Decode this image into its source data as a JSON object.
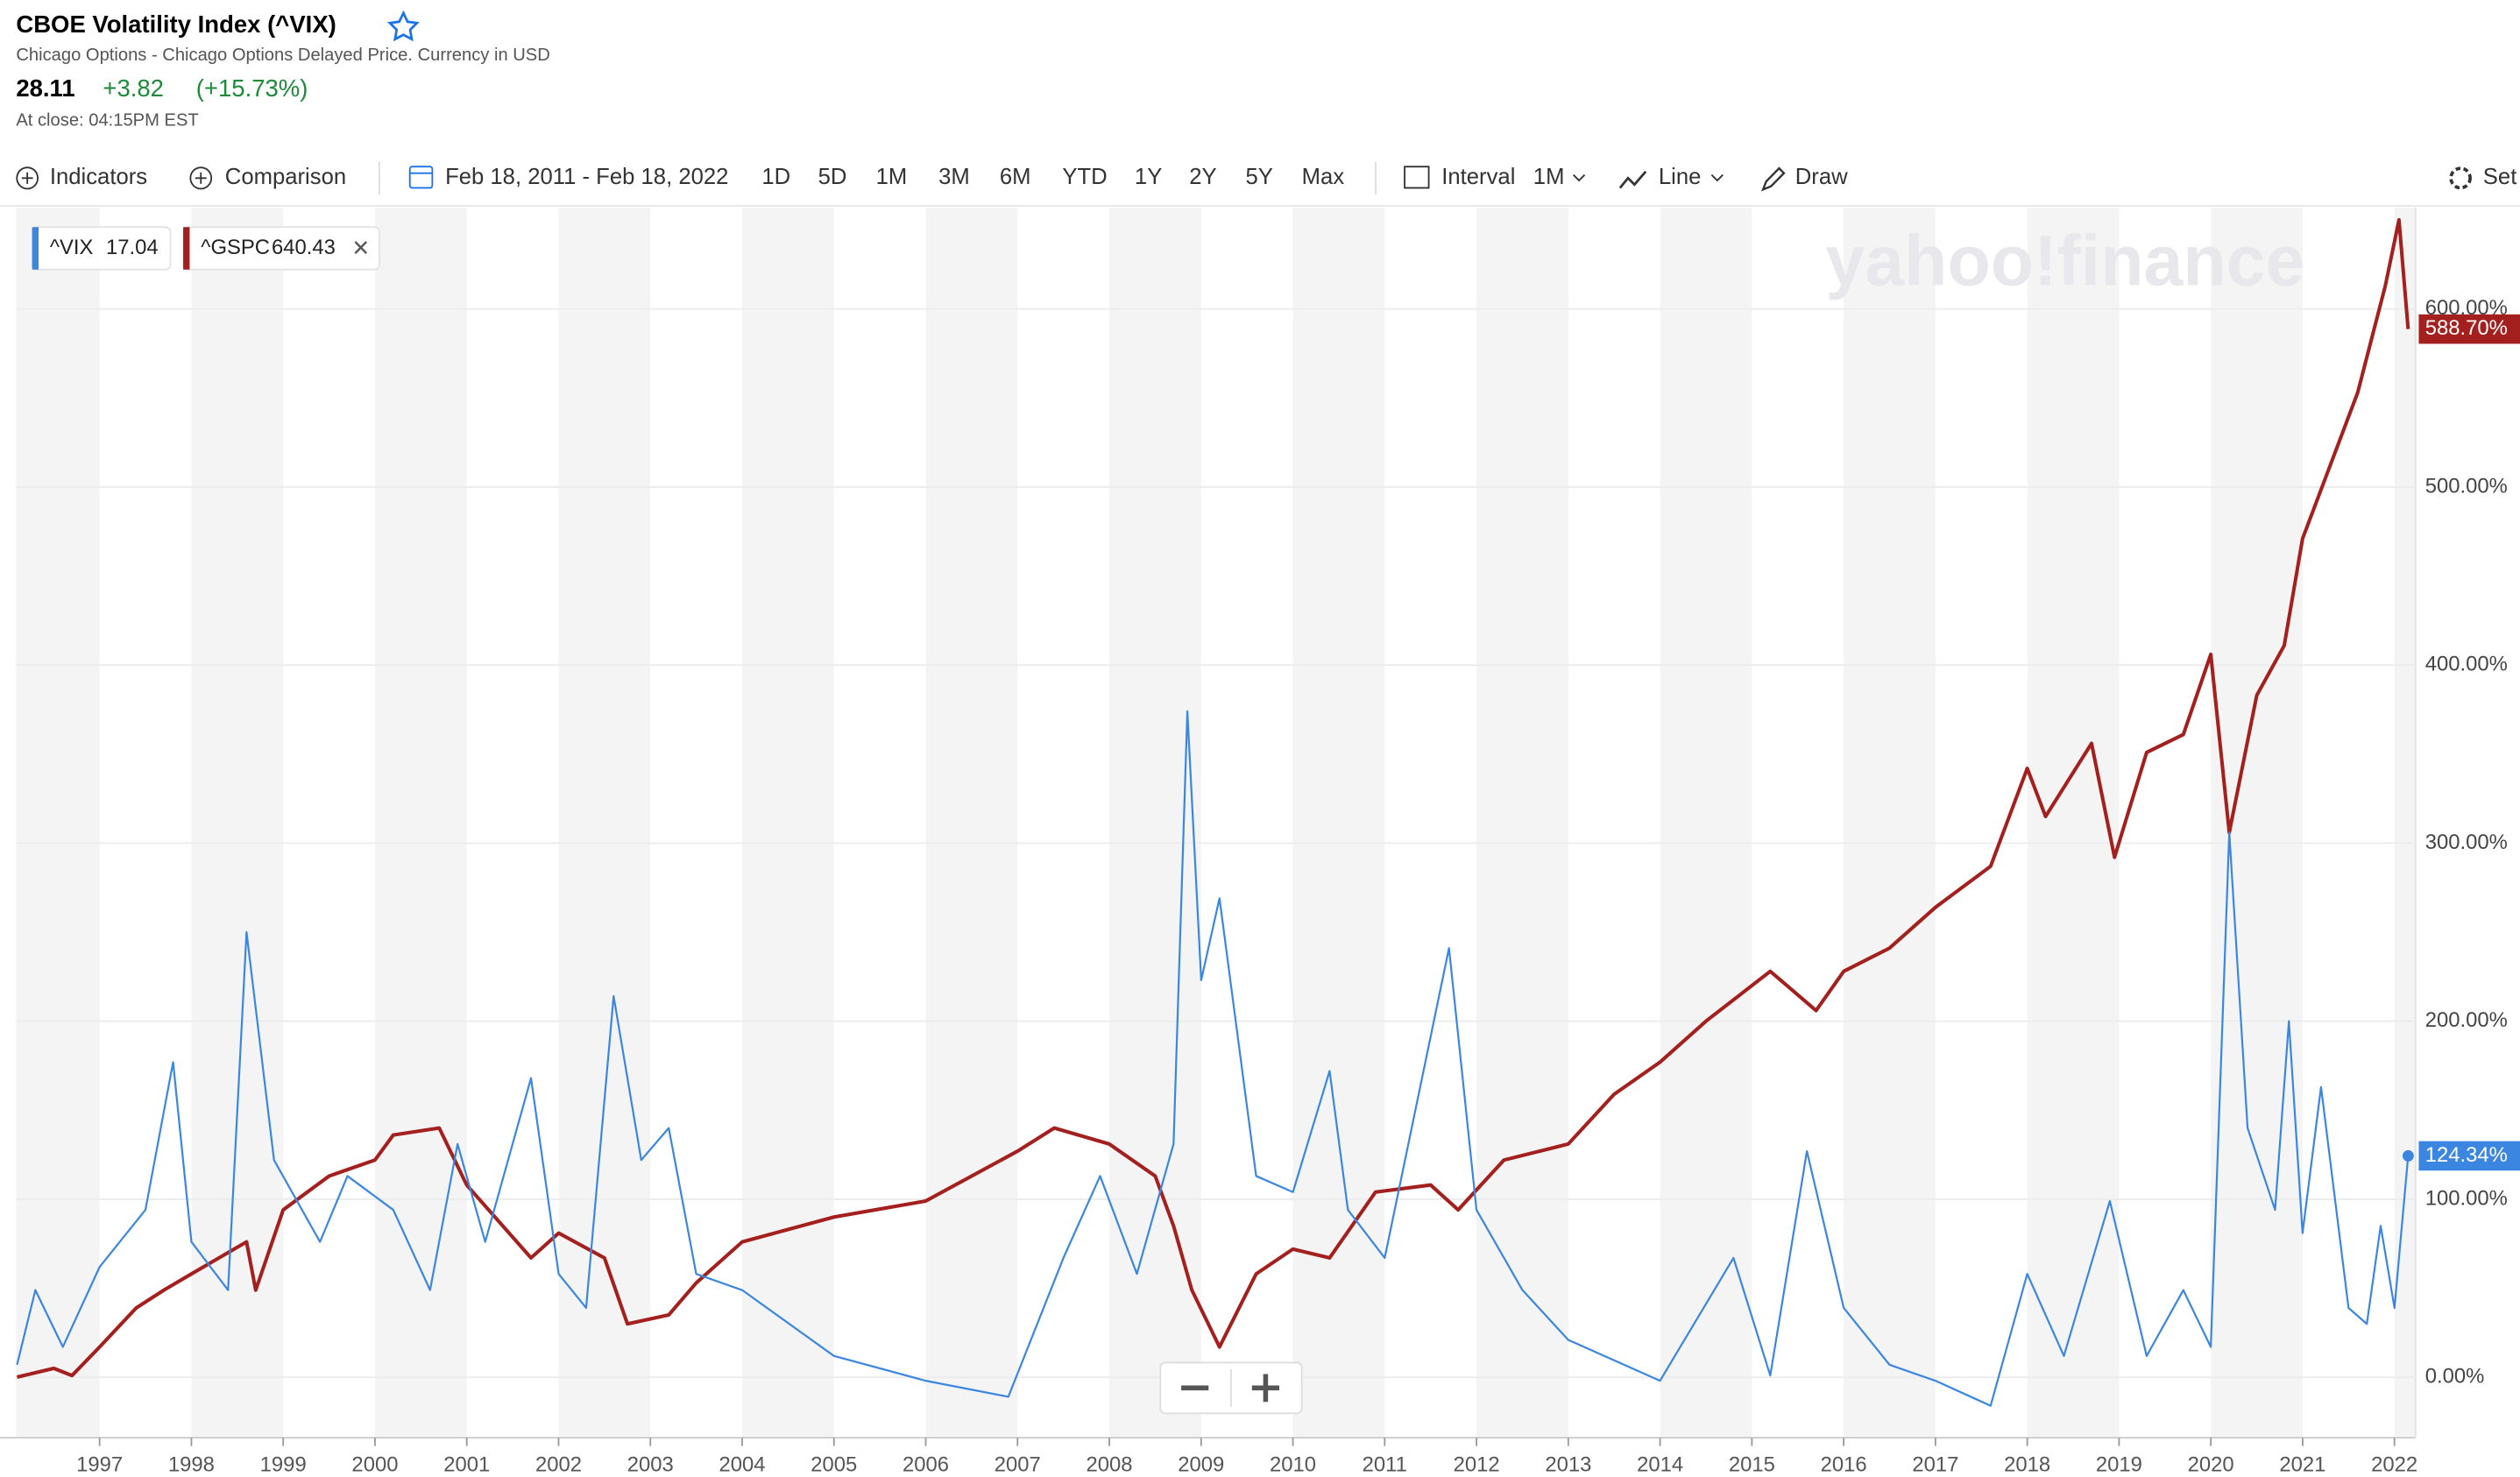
{
  "header": {
    "title": "CBOE Volatility Index (^VIX)",
    "subtitle": "Chicago Options - Chicago Options Delayed Price. Currency in USD",
    "price": "28.11",
    "change": "+3.82",
    "change_percent": "(+15.73%)",
    "close_time": "At close: 04:15PM EST"
  },
  "toolbar": {
    "indicators": "Indicators",
    "comparison": "Comparison",
    "date_range": "Feb 18, 2011 - Feb 18, 2022",
    "ranges": [
      "1D",
      "5D",
      "1M",
      "3M",
      "6M",
      "YTD",
      "1Y",
      "2Y",
      "5Y",
      "Max"
    ],
    "interval": "Interval",
    "interval_value": "1M",
    "chart_style": "Line",
    "draw": "Draw",
    "settings": "Set"
  },
  "chart_data": {
    "type": "line",
    "watermark": "yahoo!finance",
    "xlim": [
      1996.09,
      2022.23
    ],
    "xticks": [
      1997,
      1998,
      1999,
      2000,
      2001,
      2002,
      2003,
      2004,
      2005,
      2006,
      2007,
      2008,
      2009,
      2010,
      2011,
      2012,
      2013,
      2014,
      2015,
      2016,
      2017,
      2018,
      2019,
      2020,
      2021,
      2022
    ],
    "ylim": [
      -34,
      657
    ],
    "yticks": [
      {
        "value": 0,
        "label": "0.00%"
      },
      {
        "value": 100,
        "label": "100.00%"
      },
      {
        "value": 200,
        "label": "200.00%"
      },
      {
        "value": 300,
        "label": "300.00%"
      },
      {
        "value": 400,
        "label": "400.00%"
      },
      {
        "value": 500,
        "label": "500.00%"
      },
      {
        "value": 600,
        "label": "600.00%"
      }
    ],
    "grid": true,
    "series": [
      {
        "name": "^VIX",
        "legend_value": "17.04",
        "color": "#3b86e0",
        "end_label": "124.34%",
        "x": [
          1996.1,
          1996.3,
          1996.6,
          1997.0,
          1997.5,
          1997.8,
          1998.0,
          1998.4,
          1998.6,
          1998.9,
          1999.4,
          1999.7,
          2000.2,
          2000.6,
          2000.9,
          2001.2,
          2001.7,
          2002.0,
          2002.3,
          2002.6,
          2002.9,
          2003.2,
          2003.5,
          2004.0,
          2005.0,
          2006.0,
          2006.9,
          2007.5,
          2007.9,
          2008.3,
          2008.7,
          2008.85,
          2009.0,
          2009.2,
          2009.6,
          2010.0,
          2010.4,
          2010.6,
          2011.0,
          2011.7,
          2012.0,
          2012.5,
          2013.0,
          2014.0,
          2014.8,
          2015.2,
          2015.6,
          2016.0,
          2016.5,
          2017.0,
          2017.6,
          2018.0,
          2018.4,
          2018.9,
          2019.3,
          2019.7,
          2020.0,
          2020.2,
          2020.4,
          2020.7,
          2020.85,
          2021.0,
          2021.2,
          2021.5,
          2021.7,
          2021.85,
          2022.0,
          2022.15
        ],
        "values": [
          7,
          49,
          17,
          62,
          94,
          177,
          76,
          49,
          250,
          122,
          76,
          113,
          94,
          49,
          131,
          76,
          168,
          58,
          39,
          214,
          122,
          140,
          58,
          49,
          12,
          -2,
          -11,
          67,
          113,
          58,
          131,
          374,
          223,
          269,
          113,
          104,
          172,
          94,
          67,
          241,
          94,
          49,
          21,
          -2,
          67,
          1,
          127,
          39,
          7,
          -2,
          -16,
          58,
          12,
          99,
          12,
          49,
          17,
          306,
          140,
          94,
          200,
          81,
          163,
          39,
          30,
          85,
          39,
          124.34
        ]
      },
      {
        "name": "^GSPC",
        "legend_value": "640.43",
        "color": "#a3201e",
        "end_label": "588.70%",
        "x": [
          1996.1,
          1996.5,
          1996.7,
          1997.0,
          1997.4,
          1997.7,
          1998.0,
          1998.6,
          1998.7,
          1999.0,
          1999.5,
          2000.0,
          2000.2,
          2000.7,
          2001.0,
          2001.7,
          2002.0,
          2002.5,
          2002.75,
          2003.2,
          2003.5,
          2004.0,
          2005.0,
          2006.0,
          2007.0,
          2007.4,
          2008.0,
          2008.5,
          2008.7,
          2008.9,
          2009.2,
          2009.6,
          2010.0,
          2010.4,
          2010.9,
          2011.5,
          2011.8,
          2012.3,
          2013.0,
          2013.5,
          2014.0,
          2014.5,
          2015.2,
          2015.7,
          2016.0,
          2016.5,
          2017.0,
          2017.6,
          2018.0,
          2018.2,
          2018.7,
          2018.95,
          2019.3,
          2019.7,
          2020.0,
          2020.2,
          2020.5,
          2020.8,
          2021.0,
          2021.6,
          2021.9,
          2022.05,
          2022.15
        ],
        "values": [
          0,
          5,
          1,
          17,
          39,
          49,
          58,
          76,
          49,
          94,
          113,
          122,
          136,
          140,
          108,
          67,
          81,
          67,
          30,
          35,
          53,
          76,
          90,
          99,
          127,
          140,
          131,
          113,
          85,
          49,
          17,
          58,
          72,
          67,
          104,
          108,
          94,
          122,
          131,
          159,
          177,
          200,
          228,
          206,
          228,
          241,
          264,
          287,
          342,
          315,
          356,
          292,
          351,
          361,
          406,
          306,
          383,
          411,
          471,
          553,
          613,
          650,
          588.7
        ]
      }
    ]
  }
}
